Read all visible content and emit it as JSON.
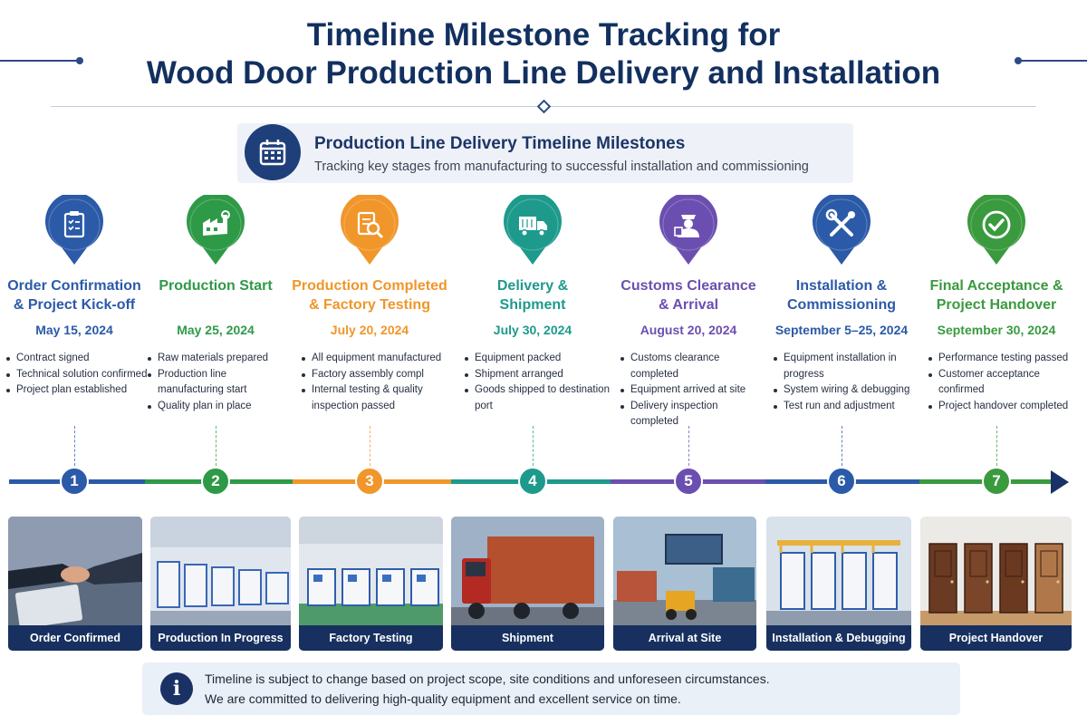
{
  "header": {
    "title_line1": "Timeline Milestone Tracking for",
    "title_line2": "Wood Door Production Line Delivery and Installation"
  },
  "banner": {
    "icon": "calendar-icon",
    "title": "Production Line Delivery Timeline Milestones",
    "subtitle": "Tracking key stages from manufacturing to successful installation and commissioning"
  },
  "stages": [
    {
      "num": "1",
      "icon": "clipboard-icon",
      "color": "#2b5aa8",
      "name_line1": "Order Confirmation",
      "name_line2": "& Project Kick-off",
      "date": "May 15, 2024",
      "bullets": [
        "Contract signed",
        "Technical solution confirmed",
        "Project plan established"
      ],
      "photo_caption": "Order Confirmed"
    },
    {
      "num": "2",
      "icon": "factory-icon",
      "color": "#2e9a48",
      "name_line1": "Production Start",
      "name_line2": "",
      "date": "May 25, 2024",
      "bullets": [
        "Raw materials prepared",
        "Production line manufacturing start",
        "Quality plan in place"
      ],
      "photo_caption": "Production In Progress"
    },
    {
      "num": "3",
      "icon": "inspection-icon",
      "color": "#f0962a",
      "name_line1": "Production Completed",
      "name_line2": "& Factory Testing",
      "date": "July 20, 2024",
      "bullets": [
        "All equipment manufactured",
        "Factory assembly compl",
        "Internal testing & quality inspection passed"
      ],
      "photo_caption": "Factory Testing"
    },
    {
      "num": "4",
      "icon": "truck-icon",
      "color": "#1e9a8c",
      "name_line1": "Delivery &",
      "name_line2": "Shipment",
      "date": "July 30, 2024",
      "bullets": [
        "Equipment packed",
        "Shipment arranged",
        "Goods shipped to destination port"
      ],
      "photo_caption": "Shipment"
    },
    {
      "num": "5",
      "icon": "customs-officer-icon",
      "color": "#6b4fb0",
      "name_line1": "Customs Clearance",
      "name_line2": "& Arrival",
      "date": "August 20, 2024",
      "bullets": [
        "Customs clearance completed",
        "Equipment arrived at site",
        "Delivery inspection completed"
      ],
      "photo_caption": "Arrival at Site"
    },
    {
      "num": "6",
      "icon": "tools-icon",
      "color": "#2b5aa8",
      "name_line1": "Installation &",
      "name_line2": "Commissioning",
      "date": "September 5–25, 2024",
      "bullets": [
        "Equipment installation in progress",
        "System wiring & debugging",
        "Test run and adjustment"
      ],
      "photo_caption": "Installation & Debugging"
    },
    {
      "num": "7",
      "icon": "checkmark-icon",
      "color": "#3a9a3e",
      "name_line1": "Final Acceptance &",
      "name_line2": "Project Handover",
      "date": "September 30, 2024",
      "bullets": [
        "Performance testing passed",
        "Customer acceptance confirmed",
        "Project handover completed"
      ],
      "photo_caption": "Project Handover"
    }
  ],
  "note": {
    "icon": "info-icon",
    "glyph": "i",
    "line1": "Timeline is subject to change based on project scope, site conditions and unforeseen circumstances.",
    "line2": "We are committed to delivering high-quality equipment and excellent service on time."
  }
}
